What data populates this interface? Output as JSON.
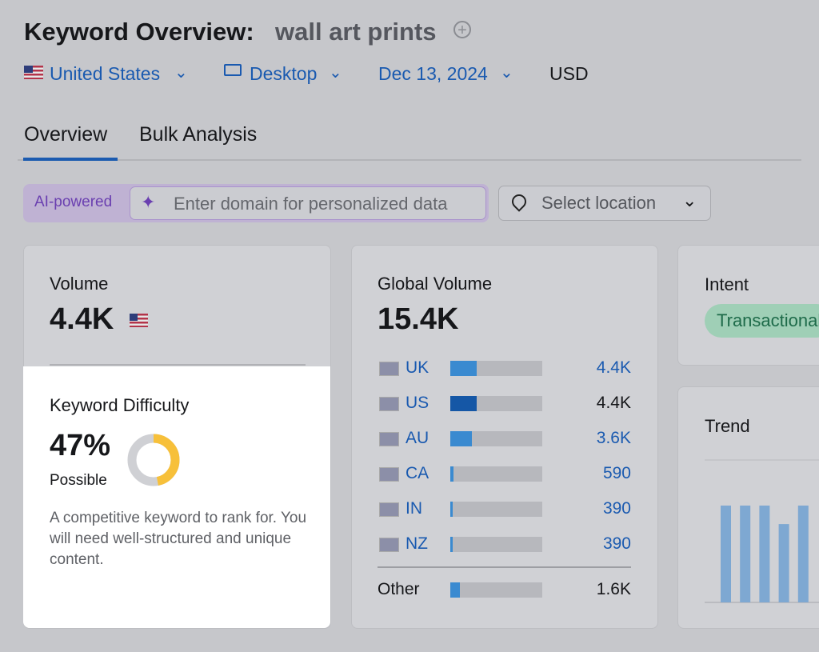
{
  "header": {
    "title": "Keyword Overview:",
    "keyword": "wall art prints"
  },
  "filters": {
    "country": "United States",
    "device": "Desktop",
    "date": "Dec 13, 2024",
    "currency": "USD"
  },
  "tabs": [
    "Overview",
    "Bulk Analysis"
  ],
  "search": {
    "badge": "AI-powered",
    "placeholder": "Enter domain for personalized data",
    "location": "Select location"
  },
  "volume": {
    "label": "Volume",
    "value": "4.4K"
  },
  "keyword_difficulty": {
    "label": "Keyword Difficulty",
    "value": {
      "value": 47,
      "label": "47%"
    },
    "level": "Possible",
    "description": "A competitive keyword to rank for. You will need well-structured and unique content."
  },
  "global_volume": {
    "label": "Global Volume",
    "total": {
      "value": 15400,
      "label": "15.4K"
    },
    "rows": [
      {
        "country": "UK",
        "value": 4400,
        "label": "4.4K",
        "color": "#3a8ad0",
        "linked": true
      },
      {
        "country": "US",
        "value": 4400,
        "label": "4.4K",
        "color": "#1557a6",
        "linked": false
      },
      {
        "country": "AU",
        "value": 3600,
        "label": "3.6K",
        "color": "#3a8ad0",
        "linked": true
      },
      {
        "country": "CA",
        "value": 590,
        "label": "590",
        "color": "#3a8ad0",
        "linked": true
      },
      {
        "country": "IN",
        "value": 390,
        "label": "390",
        "color": "#3a8ad0",
        "linked": true
      },
      {
        "country": "NZ",
        "value": 390,
        "label": "390",
        "color": "#3a8ad0",
        "linked": true
      }
    ],
    "other": {
      "country": "Other",
      "value": 1600,
      "label": "1.6K",
      "color": "#3a8ad0",
      "linked": false
    }
  },
  "intent": {
    "label": "Intent",
    "tag": "Transactional"
  },
  "trend": {
    "label": "Trend",
    "ylim": [
      0,
      100
    ],
    "values": [
      68,
      68,
      68,
      55,
      68
    ],
    "color": "#7ea8d2"
  }
}
